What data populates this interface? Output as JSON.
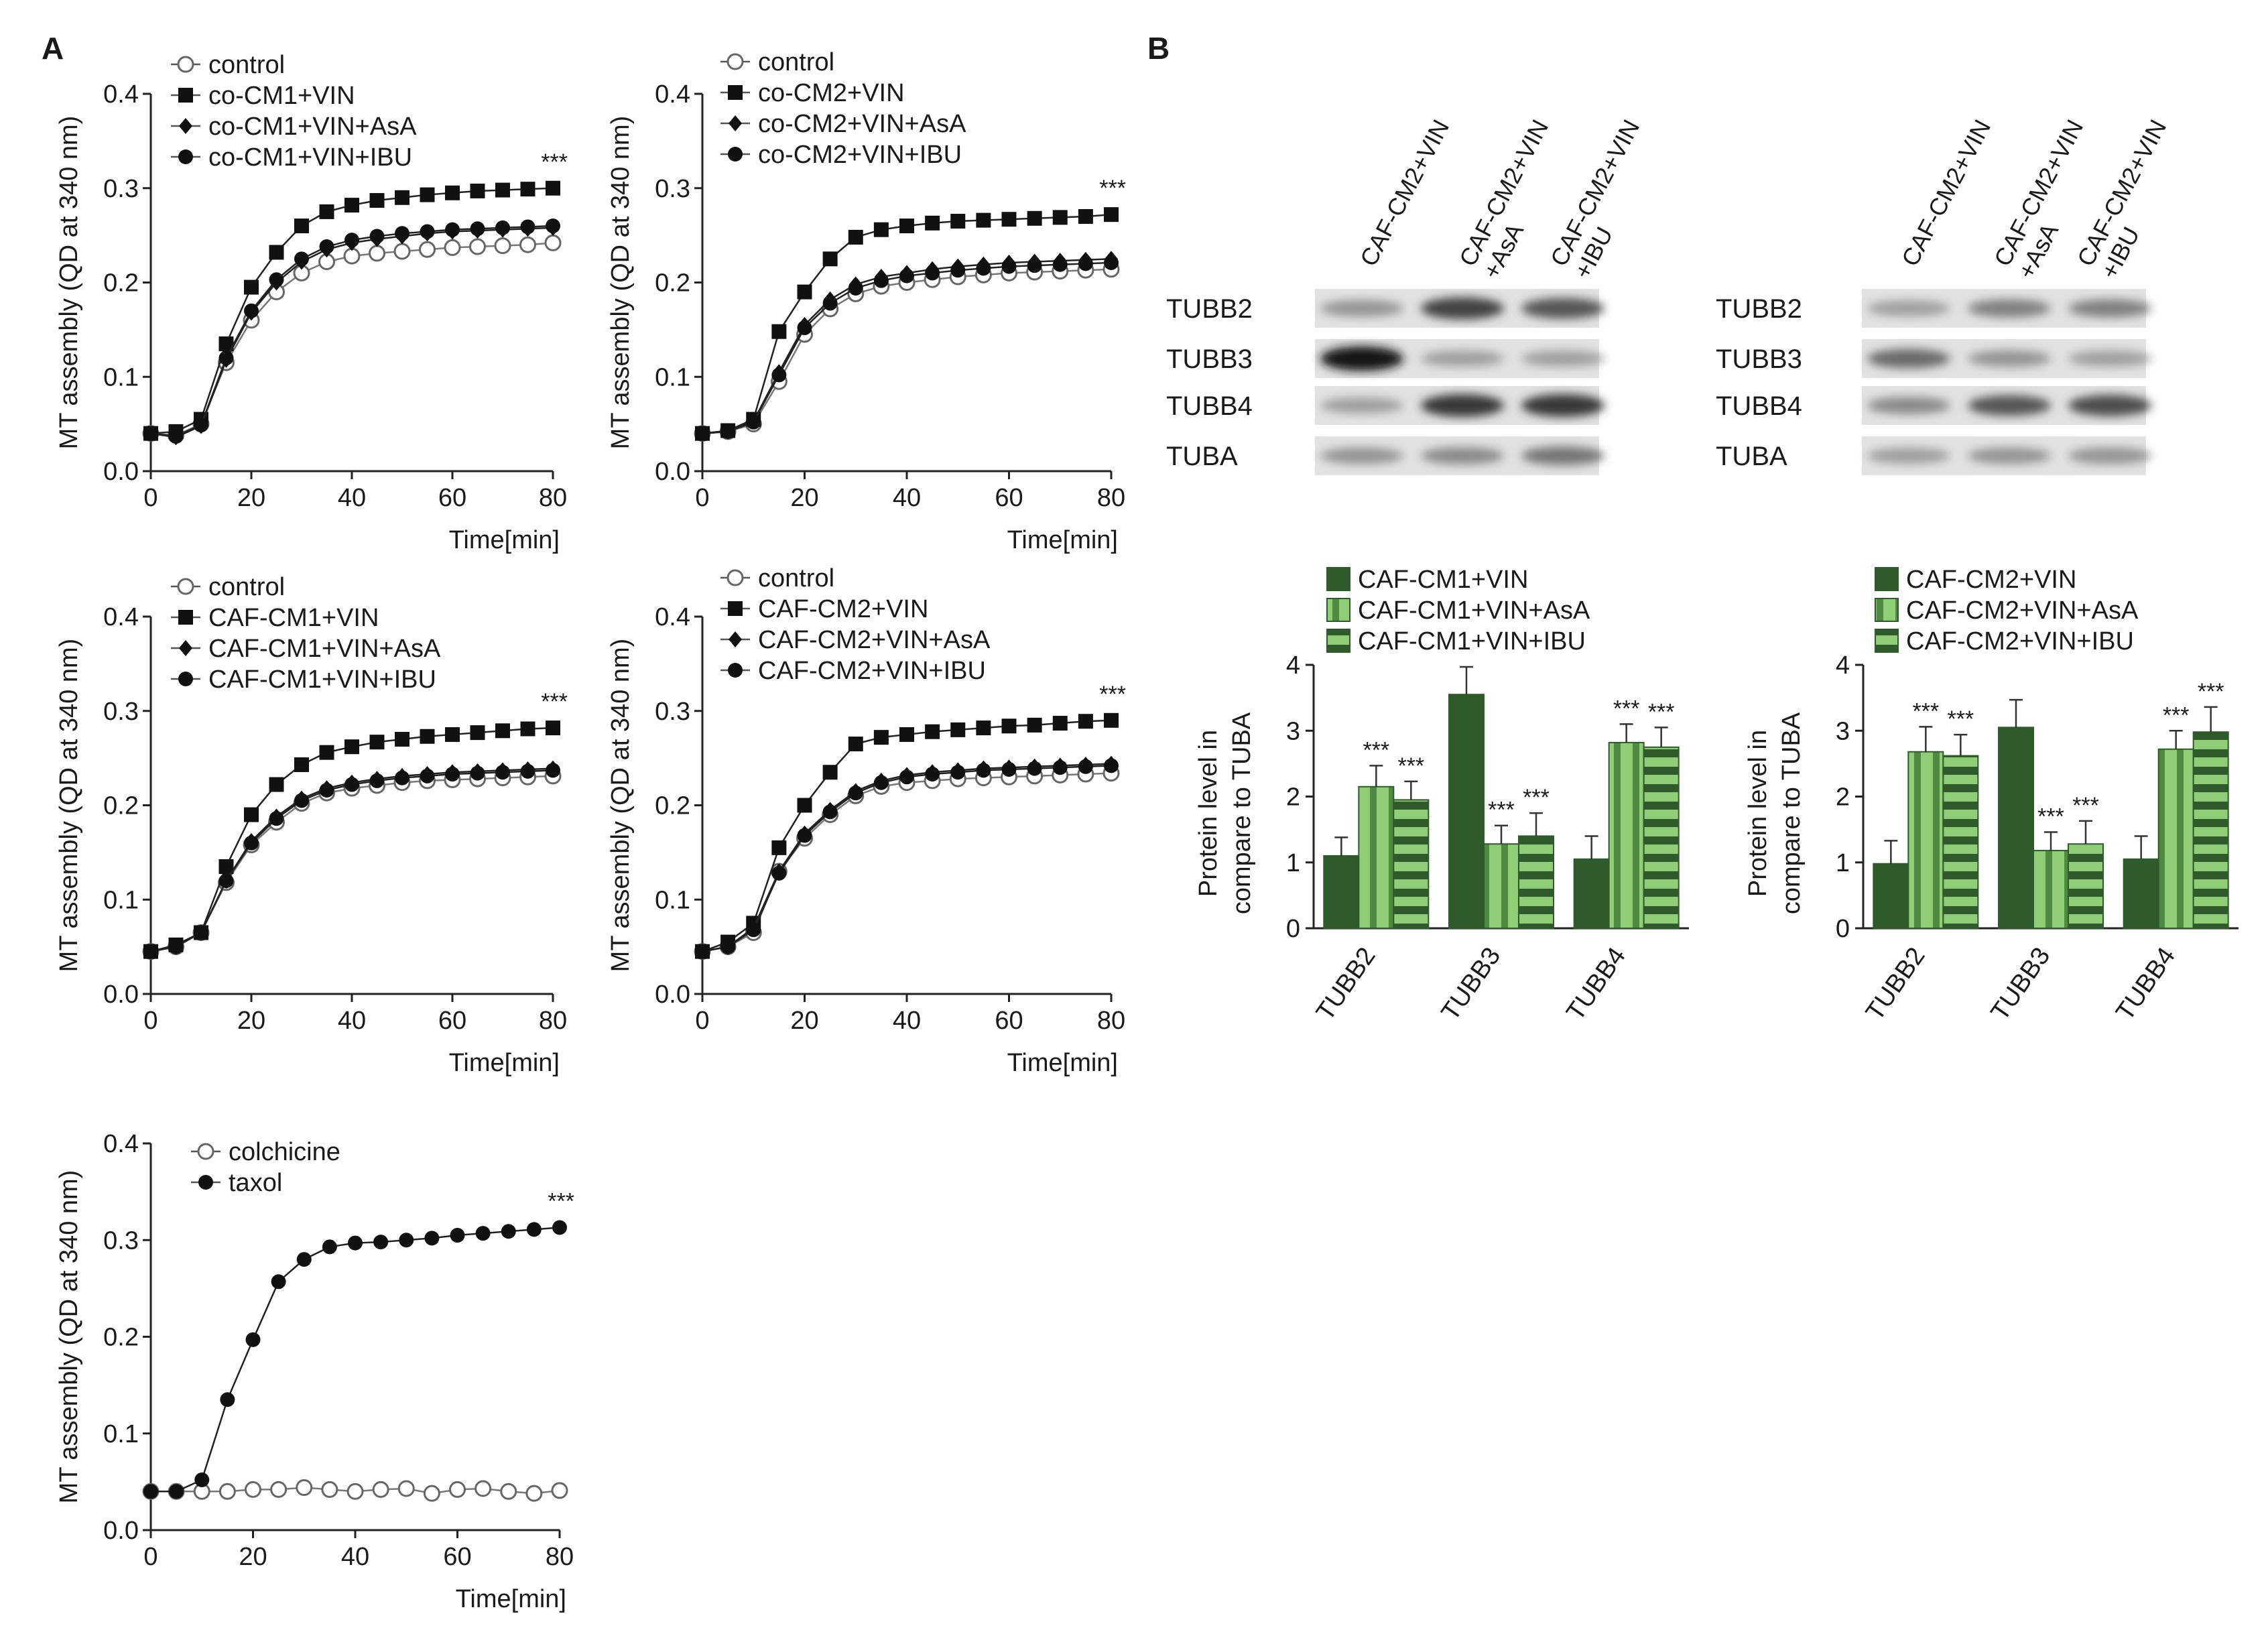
{
  "panel_labels": {
    "a": "A",
    "b": "B"
  },
  "colors": {
    "dark_green": "#2f5a2b",
    "mid_green": "#4e8a40",
    "light_green": "#8fce76",
    "black": "#111111",
    "open_marker": "#666666"
  },
  "chart_data": [
    {
      "id": "mt1",
      "type": "line",
      "ylabel": "MT assembly (QD at 340 nm)",
      "xlabel": "Time[min]",
      "xlim": [
        0,
        80
      ],
      "ylim": [
        0,
        0.4
      ],
      "xticks": [
        "0",
        "20",
        "40",
        "60",
        "80"
      ],
      "yticks": [
        "0.0",
        "0.1",
        "0.2",
        "0.3",
        "0.4"
      ],
      "x": [
        0,
        5,
        10,
        15,
        20,
        25,
        30,
        35,
        40,
        45,
        50,
        55,
        60,
        65,
        70,
        75,
        80
      ],
      "significance": "***",
      "series": [
        {
          "name": "control",
          "marker": "open-circle",
          "values": [
            0.04,
            0.038,
            0.05,
            0.115,
            0.16,
            0.19,
            0.21,
            0.222,
            0.228,
            0.231,
            0.233,
            0.235,
            0.237,
            0.238,
            0.239,
            0.24,
            0.242
          ]
        },
        {
          "name": "co-CM1+VIN",
          "marker": "square",
          "values": [
            0.04,
            0.042,
            0.055,
            0.135,
            0.195,
            0.232,
            0.26,
            0.275,
            0.282,
            0.287,
            0.29,
            0.293,
            0.295,
            0.297,
            0.298,
            0.299,
            0.3
          ]
        },
        {
          "name": "co-CM1+VIN+AsA",
          "marker": "diamond",
          "values": [
            0.04,
            0.036,
            0.048,
            0.118,
            0.168,
            0.2,
            0.222,
            0.235,
            0.242,
            0.246,
            0.249,
            0.252,
            0.254,
            0.255,
            0.256,
            0.257,
            0.258
          ]
        },
        {
          "name": "co-CM1+VIN+IBU",
          "marker": "filled-circle",
          "values": [
            0.04,
            0.037,
            0.049,
            0.12,
            0.17,
            0.203,
            0.225,
            0.238,
            0.245,
            0.249,
            0.252,
            0.254,
            0.256,
            0.257,
            0.258,
            0.259,
            0.26
          ]
        }
      ]
    },
    {
      "id": "mt2",
      "type": "line",
      "ylabel": "MT assembly (QD at 340 nm)",
      "xlabel": "Time[min]",
      "xlim": [
        0,
        80
      ],
      "ylim": [
        0,
        0.4
      ],
      "xticks": [
        "0",
        "20",
        "40",
        "60",
        "80"
      ],
      "yticks": [
        "0.0",
        "0.1",
        "0.2",
        "0.3",
        "0.4"
      ],
      "x": [
        0,
        5,
        10,
        15,
        20,
        25,
        30,
        35,
        40,
        45,
        50,
        55,
        60,
        65,
        70,
        75,
        80
      ],
      "significance": "***",
      "series": [
        {
          "name": "control",
          "marker": "open-circle",
          "values": [
            0.04,
            0.042,
            0.05,
            0.095,
            0.145,
            0.172,
            0.188,
            0.196,
            0.2,
            0.203,
            0.206,
            0.208,
            0.21,
            0.211,
            0.212,
            0.213,
            0.214
          ]
        },
        {
          "name": "co-CM2+VIN",
          "marker": "square",
          "values": [
            0.04,
            0.043,
            0.055,
            0.148,
            0.19,
            0.225,
            0.248,
            0.256,
            0.26,
            0.263,
            0.265,
            0.266,
            0.267,
            0.268,
            0.269,
            0.27,
            0.272
          ]
        },
        {
          "name": "co-CM2+VIN+AsA",
          "marker": "diamond",
          "values": [
            0.04,
            0.042,
            0.053,
            0.105,
            0.155,
            0.182,
            0.198,
            0.206,
            0.21,
            0.214,
            0.217,
            0.219,
            0.221,
            0.222,
            0.223,
            0.224,
            0.225
          ]
        },
        {
          "name": "co-CM2+VIN+IBU",
          "marker": "filled-circle",
          "values": [
            0.04,
            0.042,
            0.052,
            0.102,
            0.152,
            0.178,
            0.194,
            0.202,
            0.207,
            0.21,
            0.213,
            0.215,
            0.217,
            0.218,
            0.219,
            0.22,
            0.221
          ]
        }
      ]
    },
    {
      "id": "mt3",
      "type": "line",
      "ylabel": "MT assembly (QD at 340 nm)",
      "xlabel": "Time[min]",
      "xlim": [
        0,
        80
      ],
      "ylim": [
        0,
        0.4
      ],
      "xticks": [
        "0",
        "20",
        "40",
        "60",
        "80"
      ],
      "yticks": [
        "0.0",
        "0.1",
        "0.2",
        "0.3",
        "0.4"
      ],
      "x": [
        0,
        5,
        10,
        15,
        20,
        25,
        30,
        35,
        40,
        45,
        50,
        55,
        60,
        65,
        70,
        75,
        80
      ],
      "significance": "***",
      "series": [
        {
          "name": "control",
          "marker": "open-circle",
          "values": [
            0.045,
            0.05,
            0.065,
            0.118,
            0.158,
            0.182,
            0.202,
            0.213,
            0.218,
            0.221,
            0.224,
            0.226,
            0.227,
            0.228,
            0.229,
            0.23,
            0.231
          ]
        },
        {
          "name": "CAF-CM1+VIN",
          "marker": "square",
          "values": [
            0.045,
            0.052,
            0.065,
            0.135,
            0.19,
            0.222,
            0.243,
            0.256,
            0.262,
            0.267,
            0.27,
            0.273,
            0.275,
            0.277,
            0.279,
            0.281,
            0.282
          ]
        },
        {
          "name": "CAF-CM1+VIN+AsA",
          "marker": "diamond",
          "values": [
            0.045,
            0.05,
            0.065,
            0.12,
            0.162,
            0.188,
            0.207,
            0.218,
            0.224,
            0.228,
            0.231,
            0.233,
            0.235,
            0.236,
            0.237,
            0.238,
            0.239
          ]
        },
        {
          "name": "CAF-CM1+VIN+IBU",
          "marker": "filled-circle",
          "values": [
            0.045,
            0.05,
            0.065,
            0.12,
            0.16,
            0.186,
            0.205,
            0.216,
            0.222,
            0.226,
            0.229,
            0.231,
            0.233,
            0.234,
            0.235,
            0.236,
            0.237
          ]
        }
      ]
    },
    {
      "id": "mt4",
      "type": "line",
      "ylabel": "MT assembly (QD at 340 nm)",
      "xlabel": "Time[min]",
      "xlim": [
        0,
        80
      ],
      "ylim": [
        0,
        0.4
      ],
      "xticks": [
        "0",
        "20",
        "40",
        "60",
        "80"
      ],
      "yticks": [
        "0.0",
        "0.1",
        "0.2",
        "0.3",
        "0.4"
      ],
      "x": [
        0,
        5,
        10,
        15,
        20,
        25,
        30,
        35,
        40,
        45,
        50,
        55,
        60,
        65,
        70,
        75,
        80
      ],
      "significance": "***",
      "series": [
        {
          "name": "control",
          "marker": "open-circle",
          "values": [
            0.045,
            0.05,
            0.065,
            0.13,
            0.165,
            0.19,
            0.21,
            0.22,
            0.224,
            0.226,
            0.228,
            0.229,
            0.23,
            0.231,
            0.232,
            0.233,
            0.234
          ]
        },
        {
          "name": "CAF-CM2+VIN",
          "marker": "square",
          "values": [
            0.045,
            0.055,
            0.075,
            0.155,
            0.2,
            0.235,
            0.265,
            0.272,
            0.275,
            0.278,
            0.28,
            0.282,
            0.284,
            0.285,
            0.287,
            0.289,
            0.29
          ]
        },
        {
          "name": "CAF-CM2+VIN+AsA",
          "marker": "diamond",
          "values": [
            0.045,
            0.05,
            0.07,
            0.13,
            0.17,
            0.195,
            0.215,
            0.226,
            0.232,
            0.235,
            0.237,
            0.239,
            0.24,
            0.241,
            0.242,
            0.243,
            0.244
          ]
        },
        {
          "name": "CAF-CM2+VIN+IBU",
          "marker": "filled-circle",
          "values": [
            0.045,
            0.05,
            0.068,
            0.128,
            0.168,
            0.193,
            0.213,
            0.224,
            0.23,
            0.233,
            0.235,
            0.237,
            0.238,
            0.239,
            0.24,
            0.241,
            0.242
          ]
        }
      ]
    },
    {
      "id": "mt5",
      "type": "line",
      "ylabel": "MT assembly (QD at 340 nm)",
      "xlabel": "Time[min]",
      "xlim": [
        0,
        80
      ],
      "ylim": [
        0,
        0.4
      ],
      "xticks": [
        "0",
        "20",
        "40",
        "60",
        "80"
      ],
      "yticks": [
        "0.0",
        "0.1",
        "0.2",
        "0.3",
        "0.4"
      ],
      "x": [
        0,
        5,
        10,
        15,
        20,
        25,
        30,
        35,
        40,
        45,
        50,
        55,
        60,
        65,
        70,
        75,
        80
      ],
      "significance": "***",
      "series": [
        {
          "name": "colchicine",
          "marker": "open-circle",
          "values": [
            0.04,
            0.04,
            0.04,
            0.04,
            0.042,
            0.042,
            0.044,
            0.042,
            0.04,
            0.042,
            0.043,
            0.038,
            0.042,
            0.043,
            0.04,
            0.038,
            0.041
          ]
        },
        {
          "name": "taxol",
          "marker": "filled-circle",
          "values": [
            0.04,
            0.04,
            0.052,
            0.135,
            0.197,
            0.257,
            0.28,
            0.293,
            0.297,
            0.298,
            0.3,
            0.302,
            0.305,
            0.307,
            0.309,
            0.311,
            0.313
          ]
        }
      ]
    },
    {
      "id": "bar1",
      "type": "bar",
      "ylabel_lines": [
        "Protein level in",
        "compare to TUBA"
      ],
      "ylim": [
        0,
        4
      ],
      "yticks": [
        "0",
        "1",
        "2",
        "3",
        "4"
      ],
      "categories": [
        "TUBB2",
        "TUBB3",
        "TUBB4"
      ],
      "series": [
        {
          "name": "CAF-CM1+VIN",
          "pattern": "solid",
          "values": [
            1.1,
            3.55,
            1.05
          ],
          "errors": [
            0.28,
            0.42,
            0.35
          ],
          "marks": [
            "",
            "",
            ""
          ]
        },
        {
          "name": "CAF-CM1+VIN+AsA",
          "pattern": "vstripe",
          "values": [
            2.15,
            1.28,
            2.82
          ],
          "errors": [
            0.32,
            0.28,
            0.28
          ],
          "marks": [
            "***",
            "***",
            "***"
          ]
        },
        {
          "name": "CAF-CM1+VIN+IBU",
          "pattern": "hstripe",
          "values": [
            1.95,
            1.4,
            2.75
          ],
          "errors": [
            0.28,
            0.35,
            0.3
          ],
          "marks": [
            "***",
            "***",
            "***"
          ]
        }
      ]
    },
    {
      "id": "bar2",
      "type": "bar",
      "ylabel_lines": [
        "Protein level in",
        "compare to TUBA"
      ],
      "ylim": [
        0,
        4
      ],
      "yticks": [
        "0",
        "1",
        "2",
        "3",
        "4"
      ],
      "categories": [
        "TUBB2",
        "TUBB3",
        "TUBB4"
      ],
      "series": [
        {
          "name": "CAF-CM2+VIN",
          "pattern": "solid",
          "values": [
            0.98,
            3.05,
            1.05
          ],
          "errors": [
            0.35,
            0.42,
            0.35
          ],
          "marks": [
            "",
            "",
            ""
          ]
        },
        {
          "name": "CAF-CM2+VIN+AsA",
          "pattern": "vstripe",
          "values": [
            2.68,
            1.18,
            2.72
          ],
          "errors": [
            0.38,
            0.28,
            0.28
          ],
          "marks": [
            "***",
            "***",
            "***"
          ]
        },
        {
          "name": "CAF-CM2+VIN+IBU",
          "pattern": "hstripe",
          "values": [
            2.62,
            1.28,
            2.98
          ],
          "errors": [
            0.32,
            0.35,
            0.38
          ],
          "marks": [
            "***",
            "***",
            "***"
          ]
        }
      ]
    }
  ],
  "blots": [
    {
      "id": "blot1",
      "lanes": [
        [
          "CAF-CM2+VIN"
        ],
        [
          "CAF-CM2+VIN",
          "+AsA"
        ],
        [
          "CAF-CM2+VIN",
          "+IBU"
        ]
      ],
      "rows": [
        {
          "label": "TUBB2",
          "bands": [
            0.35,
            0.75,
            0.65
          ]
        },
        {
          "label": "TUBB3",
          "bands": [
            0.95,
            0.3,
            0.3
          ]
        },
        {
          "label": "TUBB4",
          "bands": [
            0.3,
            0.8,
            0.8
          ]
        },
        {
          "label": "TUBA",
          "bands": [
            0.35,
            0.4,
            0.5
          ]
        }
      ]
    },
    {
      "id": "blot2",
      "lanes": [
        [
          "CAF-CM2+VIN"
        ],
        [
          "CAF-CM2+VIN",
          "+AsA"
        ],
        [
          "CAF-CM2+VIN",
          "+IBU"
        ]
      ],
      "rows": [
        {
          "label": "TUBB2",
          "bands": [
            0.3,
            0.45,
            0.45
          ]
        },
        {
          "label": "TUBB3",
          "bands": [
            0.55,
            0.35,
            0.3
          ]
        },
        {
          "label": "TUBB4",
          "bands": [
            0.4,
            0.65,
            0.7
          ]
        },
        {
          "label": "TUBA",
          "bands": [
            0.3,
            0.35,
            0.35
          ]
        }
      ]
    }
  ]
}
